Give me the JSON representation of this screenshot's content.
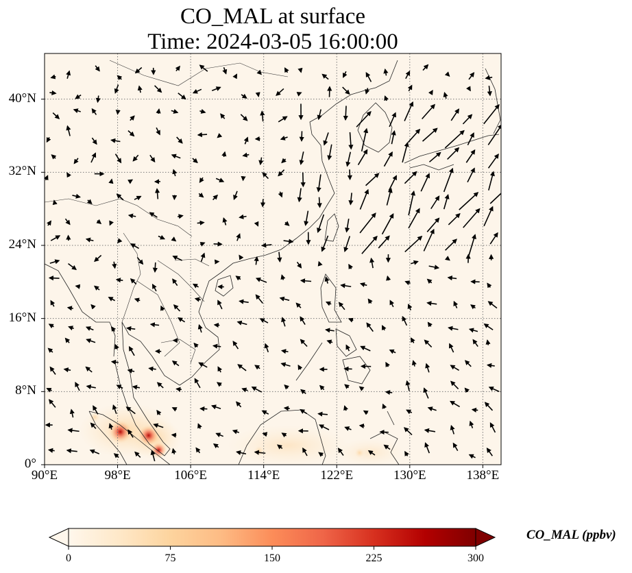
{
  "title": {
    "line1": "CO_MAL at surface",
    "line2": "Time: 2024-03-05 16:00:00"
  },
  "map": {
    "extent": {
      "lon_min": 90,
      "lon_max": 140,
      "lat_min": 0,
      "lat_max": 45
    },
    "lat_ticks": [
      {
        "value": 40,
        "label": "40°N"
      },
      {
        "value": 32,
        "label": "32°N"
      },
      {
        "value": 24,
        "label": "24°N"
      },
      {
        "value": 16,
        "label": "16°N"
      },
      {
        "value": 8,
        "label": "8°N"
      },
      {
        "value": 0,
        "label": "0°"
      }
    ],
    "lon_ticks": [
      {
        "value": 90,
        "label": "90°E"
      },
      {
        "value": 98,
        "label": "98°E"
      },
      {
        "value": 106,
        "label": "106°E"
      },
      {
        "value": 114,
        "label": "114°E"
      },
      {
        "value": 122,
        "label": "122°E"
      },
      {
        "value": 130,
        "label": "130°E"
      },
      {
        "value": 138,
        "label": "138°E"
      }
    ],
    "gridlines": "dotted",
    "background_color": "#fdf5ea",
    "coastline_color": "#222222",
    "wind_vectors": "black arrows",
    "hotspots": [
      {
        "lon": 98.3,
        "lat": 3.6,
        "co_ppbv": 290
      },
      {
        "lon": 101.4,
        "lat": 3.2,
        "co_ppbv": 260
      },
      {
        "lon": 102.5,
        "lat": 1.6,
        "co_ppbv": 180
      },
      {
        "lon": 95.5,
        "lat": 5.2,
        "co_ppbv": 90
      },
      {
        "lon": 113.5,
        "lat": 1.5,
        "co_ppbv": 70
      },
      {
        "lon": 124.5,
        "lat": 1.3,
        "co_ppbv": 60
      }
    ]
  },
  "colorbar": {
    "title": "CO_MAL (ppbv)",
    "colormap": "OrRd",
    "min": 0,
    "max": 300,
    "extend": "both",
    "ticks": [
      "0",
      "75",
      "150",
      "225",
      "300"
    ]
  }
}
